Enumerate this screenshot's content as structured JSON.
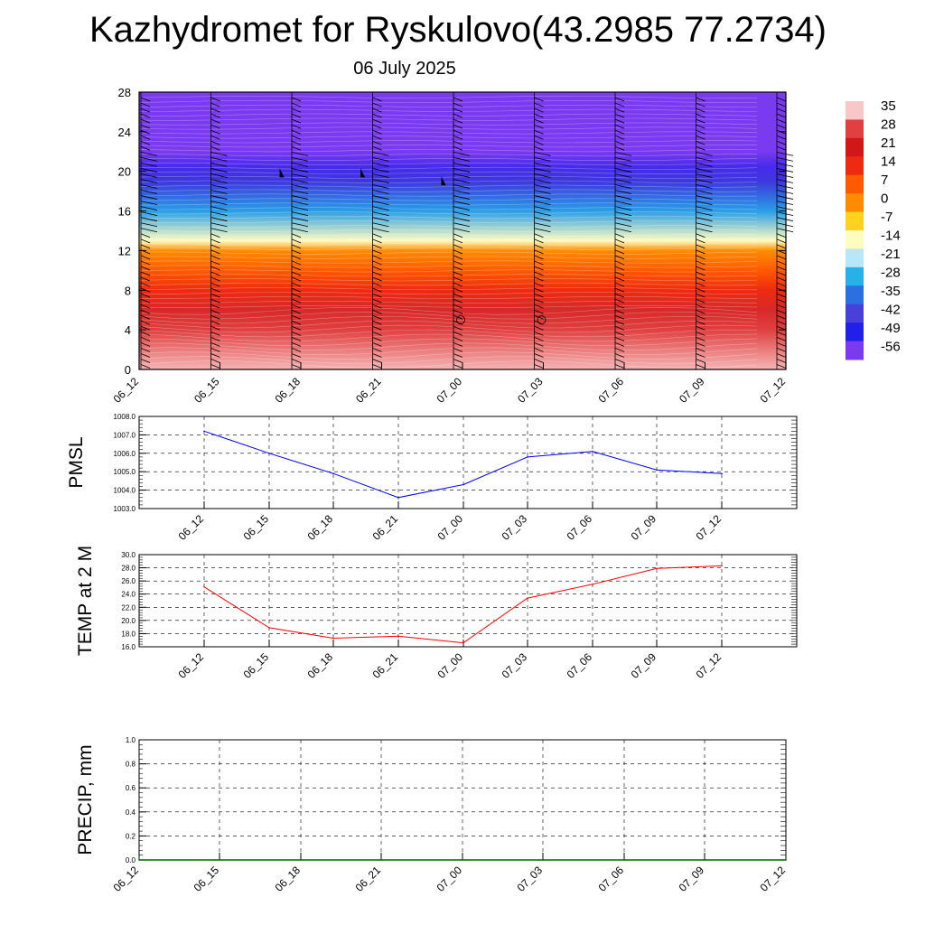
{
  "title": "Kazhydromet for Ryskulovo(43.2985 77.2734)",
  "subtitle": "06 July 2025",
  "colors": {
    "pmsl_line": "#0000ff",
    "temp_line": "#ff0000",
    "precip_line": "#006400",
    "grid": "#000000"
  },
  "chart_data": [
    {
      "type": "heatmap",
      "name": "vertical-cross-section",
      "x_ticks": [
        "06_12",
        "06_15",
        "06_18",
        "06_21",
        "07_00",
        "07_03",
        "07_06",
        "07_09",
        "07_12"
      ],
      "y_ticks": [
        "0",
        "4",
        "8",
        "12",
        "16",
        "20",
        "24",
        "28"
      ],
      "ylim": [
        0,
        28
      ],
      "colorbar_labels": [
        "35",
        "28",
        "21",
        "14",
        "7",
        "0",
        "-7",
        "-14",
        "-21",
        "-28",
        "-35",
        "-42",
        "-49",
        "-56"
      ],
      "colorbar_colors": [
        "#f8c8c8",
        "#e04040",
        "#d01818",
        "#ee2a10",
        "#ff5a00",
        "#ff8c00",
        "#ffd21e",
        "#fffcc0",
        "#b8e8f8",
        "#28b0e8",
        "#2a70e0",
        "#4840d8",
        "#2020e8",
        "#7a3af0"
      ],
      "temperature_profile": [
        {
          "height": 0,
          "value": 34
        },
        {
          "height": 4,
          "value": 28
        },
        {
          "height": 6,
          "value": 24
        },
        {
          "height": 8,
          "value": 14
        },
        {
          "height": 10,
          "value": 7
        },
        {
          "height": 12,
          "value": 0
        },
        {
          "height": 13,
          "value": -14
        },
        {
          "height": 16,
          "value": -30
        },
        {
          "height": 19,
          "value": -44
        },
        {
          "height": 20.5,
          "value": -52
        },
        {
          "height": 22,
          "value": -56
        },
        {
          "height": 28,
          "value": -56
        }
      ]
    },
    {
      "type": "line",
      "name": "pmsl",
      "ylabel": "PMSL",
      "categories": [
        "06_12",
        "06_15",
        "06_18",
        "06_21",
        "07_00",
        "07_03",
        "07_06",
        "07_09",
        "07_12"
      ],
      "values": [
        1007.2,
        1006.0,
        1004.9,
        1003.6,
        1004.3,
        1005.8,
        1006.1,
        1005.1,
        1004.9
      ],
      "y_ticks": [
        "1003.0",
        "1004.0",
        "1005.0",
        "1006.0",
        "1007.0",
        "1008.0"
      ],
      "ylim": [
        1003.0,
        1008.0
      ],
      "grid": true
    },
    {
      "type": "line",
      "name": "temp-2m",
      "ylabel": "TEMP at 2 M",
      "categories": [
        "06_12",
        "06_15",
        "06_18",
        "06_21",
        "07_00",
        "07_03",
        "07_06",
        "07_09",
        "07_12"
      ],
      "values": [
        25.1,
        18.9,
        17.3,
        17.6,
        16.6,
        23.4,
        25.5,
        27.9,
        28.3
      ],
      "y_ticks": [
        "16.0",
        "18.0",
        "20.0",
        "22.0",
        "24.0",
        "26.0",
        "28.0",
        "30.0"
      ],
      "ylim": [
        16.0,
        30.0
      ],
      "grid": true
    },
    {
      "type": "line",
      "name": "precip",
      "ylabel": "PRECIP, mm",
      "categories": [
        "06_12",
        "06_15",
        "06_18",
        "06_21",
        "07_00",
        "07_03",
        "07_06",
        "07_09",
        "07_12"
      ],
      "values": [
        0,
        0,
        0,
        0,
        0,
        0,
        0,
        0,
        0
      ],
      "y_ticks": [
        "0.0",
        "0.2",
        "0.4",
        "0.6",
        "0.8",
        "1.0"
      ],
      "ylim": [
        0.0,
        1.0
      ],
      "grid": true
    }
  ]
}
